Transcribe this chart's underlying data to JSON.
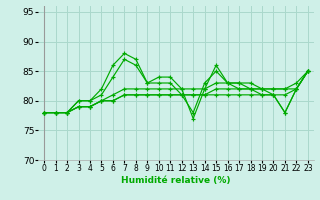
{
  "xlabel": "Humidité relative (%)",
  "xlim": [
    -0.5,
    23.5
  ],
  "ylim": [
    70,
    96
  ],
  "yticks": [
    70,
    75,
    80,
    85,
    90,
    95
  ],
  "xticks": [
    0,
    1,
    2,
    3,
    4,
    5,
    6,
    7,
    8,
    9,
    10,
    11,
    12,
    13,
    14,
    15,
    16,
    17,
    18,
    19,
    20,
    21,
    22,
    23
  ],
  "bg_color": "#cff0e8",
  "grid_color": "#aad8cc",
  "line_color": "#00aa00",
  "series": [
    [
      78,
      78,
      78,
      80,
      80,
      82,
      86,
      88,
      87,
      83,
      84,
      84,
      82,
      77,
      82,
      86,
      83,
      83,
      82,
      82,
      81,
      78,
      82,
      85
    ],
    [
      78,
      78,
      78,
      80,
      80,
      81,
      84,
      87,
      86,
      83,
      83,
      83,
      81,
      78,
      83,
      85,
      83,
      82,
      82,
      81,
      81,
      78,
      82,
      85
    ],
    [
      78,
      78,
      78,
      79,
      79,
      80,
      81,
      82,
      82,
      82,
      82,
      82,
      82,
      82,
      82,
      83,
      83,
      83,
      83,
      82,
      82,
      82,
      83,
      85
    ],
    [
      78,
      78,
      78,
      79,
      79,
      80,
      80,
      81,
      81,
      81,
      81,
      81,
      81,
      81,
      81,
      82,
      82,
      82,
      82,
      82,
      82,
      82,
      82,
      85
    ],
    [
      78,
      78,
      78,
      79,
      79,
      80,
      80,
      81,
      81,
      81,
      81,
      81,
      81,
      81,
      81,
      81,
      81,
      81,
      81,
      81,
      81,
      81,
      82,
      85
    ]
  ]
}
